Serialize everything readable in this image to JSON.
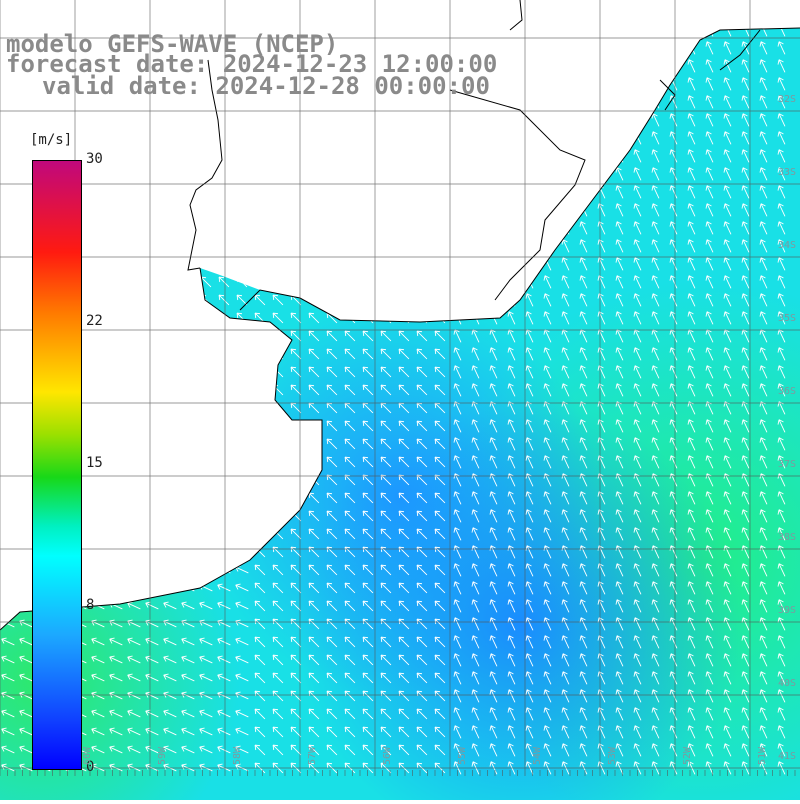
{
  "title": {
    "line1": "modelo GEFS-WAVE (NCEP)",
    "line2": "forecast date: 2024-12-23 12:00:00",
    "line3": "valid date: 2024-12-28 00:00:00"
  },
  "colorbar": {
    "unit": "[m/s]",
    "ticks": [
      "30",
      "22",
      "15",
      "8",
      "0"
    ],
    "tick_values": [
      30,
      22,
      15,
      8,
      0
    ]
  },
  "lat_labels": [
    "32S",
    "33S",
    "34S",
    "35S",
    "36S",
    "37S",
    "38S",
    "39S",
    "40S",
    "41S"
  ],
  "lon_labels": [
    "60W",
    "59W",
    "58W",
    "57W",
    "56W",
    "55W",
    "54W",
    "53W",
    "52W",
    "51W"
  ],
  "colors": {
    "land": "#ffffff",
    "coast": "#000000",
    "grid": "#555555",
    "arrow": "#ffffff",
    "title": "#8a8a8a"
  },
  "wind_field": {
    "variable": "wind speed",
    "units": "m/s",
    "dominant_direction": "from southeast toward northwest",
    "range": [
      0,
      30
    ]
  }
}
